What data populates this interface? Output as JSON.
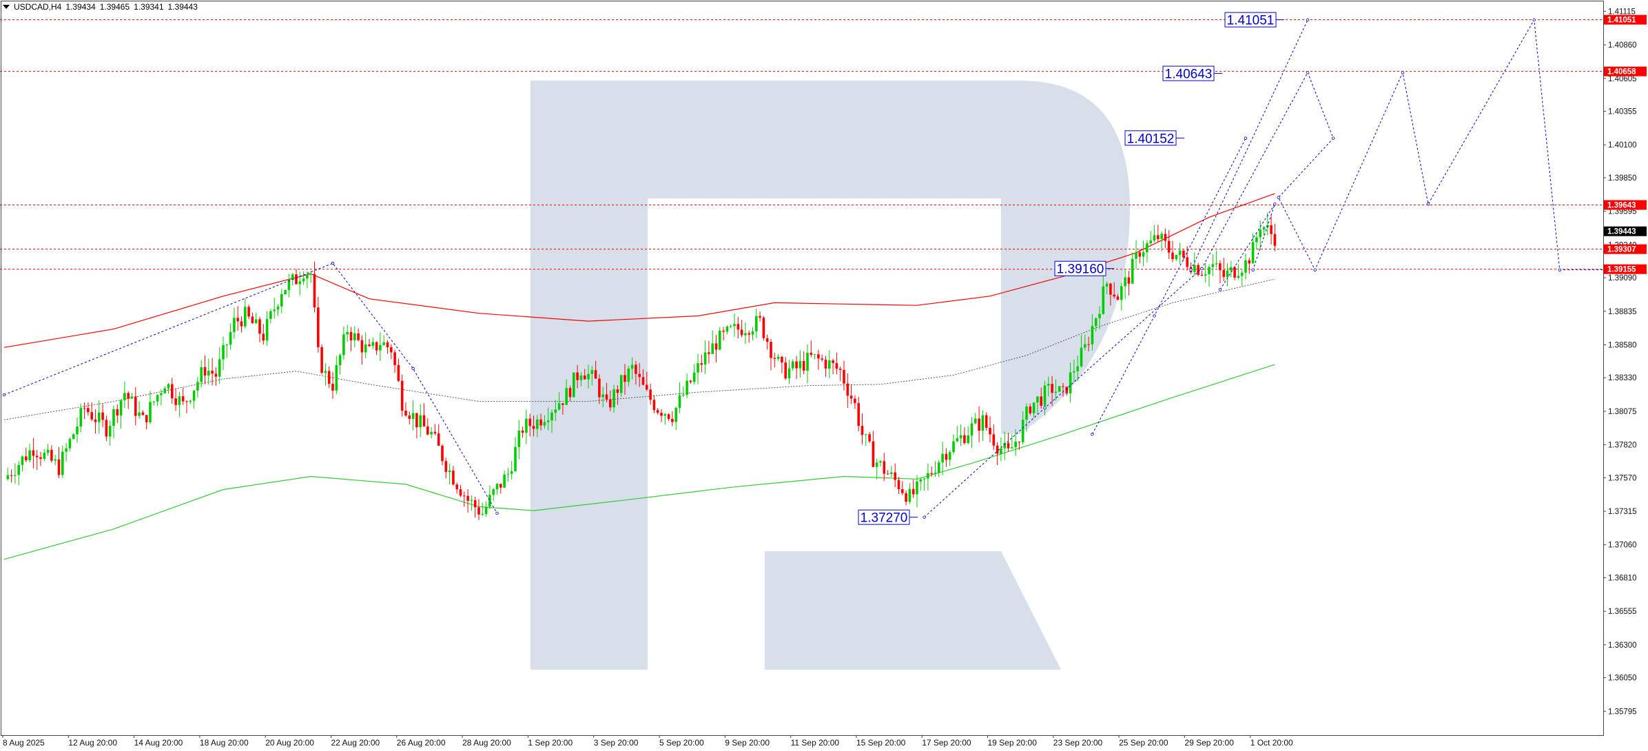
{
  "header": {
    "symbol": "USDCAD,H4",
    "open": "1.39434",
    "high": "1.39465",
    "low": "1.39341",
    "close": "1.39443"
  },
  "chart_data": {
    "type": "candlestick",
    "symbol": "USDCAD",
    "timeframe": "H4",
    "ylim": [
      1.3565,
      1.4118
    ],
    "y_ticks": [
      "1.41115",
      "1.40860",
      "1.40605",
      "1.40355",
      "1.40100",
      "1.39850",
      "1.39595",
      "1.39340",
      "1.39090",
      "1.38835",
      "1.38580",
      "1.38330",
      "1.38075",
      "1.37820",
      "1.37570",
      "1.37315",
      "1.37060",
      "1.36810",
      "1.36555",
      "1.36300",
      "1.36050",
      "1.35795"
    ],
    "x_labels": [
      "8 Aug 2025",
      "12 Aug 20:00",
      "14 Aug 20:00",
      "18 Aug 20:00",
      "20 Aug 20:00",
      "22 Aug 20:00",
      "26 Aug 20:00",
      "28 Aug 20:00",
      "1 Sep 20:00",
      "3 Sep 20:00",
      "5 Sep 20:00",
      "9 Sep 20:00",
      "11 Sep 20:00",
      "15 Sep 20:00",
      "17 Sep 20:00",
      "19 Sep 20:00",
      "23 Sep 20:00",
      "25 Sep 20:00",
      "29 Sep 20:00",
      "1 Oct 20:00"
    ],
    "horizontal_levels": [
      {
        "value": 1.41051,
        "label": "1.41051"
      },
      {
        "value": 1.40658,
        "label": "1.40658"
      },
      {
        "value": 1.39643,
        "label": "1.39643"
      },
      {
        "value": 1.39307,
        "label": "1.39307"
      },
      {
        "value": 1.39155,
        "label": "1.39155"
      }
    ],
    "current_price": "1.39443",
    "annotations": [
      {
        "label": "1.41051",
        "value": 1.41051
      },
      {
        "label": "1.40643",
        "value": 1.40643
      },
      {
        "label": "1.40152",
        "value": 1.40152
      },
      {
        "label": "1.39160",
        "value": 1.3916
      },
      {
        "label": "1.37270",
        "value": 1.3727
      }
    ],
    "candle_path": [
      [
        0,
        1.3756
      ],
      [
        8,
        1.378
      ],
      [
        15,
        1.3765
      ],
      [
        22,
        1.381
      ],
      [
        28,
        1.3795
      ],
      [
        33,
        1.3822
      ],
      [
        38,
        1.38
      ],
      [
        44,
        1.383
      ],
      [
        49,
        1.3812
      ],
      [
        55,
        1.384
      ],
      [
        58,
        1.3835
      ],
      [
        63,
        1.3875
      ],
      [
        66,
        1.388
      ],
      [
        71,
        1.3865
      ],
      [
        76,
        1.39
      ],
      [
        80,
        1.3908
      ],
      [
        82,
        1.3915
      ],
      [
        84,
        1.3912
      ],
      [
        86,
        1.385
      ],
      [
        88,
        1.3835
      ],
      [
        90,
        1.3828
      ],
      [
        94,
        1.387
      ],
      [
        97,
        1.386
      ],
      [
        100,
        1.3852
      ],
      [
        103,
        1.386
      ],
      [
        106,
        1.3855
      ],
      [
        109,
        1.3815
      ],
      [
        113,
        1.38
      ],
      [
        117,
        1.379
      ],
      [
        122,
        1.3762
      ],
      [
        127,
        1.374
      ],
      [
        131,
        1.373
      ],
      [
        134,
        1.3745
      ],
      [
        138,
        1.376
      ],
      [
        142,
        1.3795
      ],
      [
        146,
        1.38
      ],
      [
        150,
        1.381
      ],
      [
        154,
        1.382
      ],
      [
        158,
        1.384
      ],
      [
        162,
        1.383
      ],
      [
        165,
        1.381
      ],
      [
        168,
        1.3825
      ],
      [
        172,
        1.384
      ],
      [
        176,
        1.382
      ],
      [
        179,
        1.381
      ],
      [
        183,
        1.3805
      ],
      [
        187,
        1.3825
      ],
      [
        191,
        1.3845
      ],
      [
        195,
        1.386
      ],
      [
        199,
        1.3868
      ],
      [
        203,
        1.3872
      ],
      [
        207,
        1.3875
      ],
      [
        210,
        1.3855
      ],
      [
        213,
        1.3838
      ],
      [
        217,
        1.384
      ],
      [
        221,
        1.3848
      ],
      [
        225,
        1.3845
      ],
      [
        229,
        1.3838
      ],
      [
        233,
        1.3812
      ],
      [
        235,
        1.379
      ],
      [
        238,
        1.3772
      ],
      [
        242,
        1.376
      ],
      [
        245,
        1.3752
      ],
      [
        248,
        1.3742
      ],
      [
        251,
        1.375
      ],
      [
        254,
        1.3762
      ],
      [
        257,
        1.3775
      ],
      [
        261,
        1.3785
      ],
      [
        265,
        1.3795
      ],
      [
        268,
        1.38
      ],
      [
        272,
        1.3782
      ],
      [
        275,
        1.3775
      ],
      [
        278,
        1.379
      ],
      [
        281,
        1.3812
      ],
      [
        284,
        1.3818
      ],
      [
        287,
        1.3825
      ],
      [
        290,
        1.382
      ],
      [
        293,
        1.384
      ],
      [
        296,
        1.3855
      ],
      [
        299,
        1.388
      ],
      [
        302,
        1.3905
      ],
      [
        305,
        1.3895
      ],
      [
        308,
        1.391
      ],
      [
        311,
        1.393
      ],
      [
        314,
        1.3935
      ],
      [
        316,
        1.394
      ],
      [
        319,
        1.393
      ],
      [
        322,
        1.3925
      ],
      [
        325,
        1.392
      ],
      [
        328,
        1.3915
      ],
      [
        331,
        1.3918
      ],
      [
        334,
        1.391
      ],
      [
        337,
        1.3915
      ],
      [
        340,
        1.392
      ],
      [
        342,
        1.393
      ],
      [
        344,
        1.395
      ],
      [
        346,
        1.3945
      ],
      [
        348,
        1.394
      ]
    ],
    "moving_averages": {
      "red": [
        [
          0,
          1.3856
        ],
        [
          30,
          1.387
        ],
        [
          60,
          1.3895
        ],
        [
          84,
          1.3912
        ],
        [
          100,
          1.3893
        ],
        [
          130,
          1.3882
        ],
        [
          160,
          1.3876
        ],
        [
          190,
          1.388
        ],
        [
          211,
          1.389
        ],
        [
          230,
          1.3889
        ],
        [
          250,
          1.3888
        ],
        [
          270,
          1.3895
        ],
        [
          290,
          1.391
        ],
        [
          310,
          1.3928
        ],
        [
          330,
          1.3955
        ],
        [
          348,
          1.3973
        ]
      ],
      "black_dotted": [
        [
          0,
          1.3801
        ],
        [
          30,
          1.3815
        ],
        [
          60,
          1.3832
        ],
        [
          80,
          1.3838
        ],
        [
          100,
          1.3828
        ],
        [
          130,
          1.3815
        ],
        [
          160,
          1.3815
        ],
        [
          190,
          1.3822
        ],
        [
          220,
          1.3827
        ],
        [
          240,
          1.3828
        ],
        [
          260,
          1.3835
        ],
        [
          280,
          1.385
        ],
        [
          300,
          1.3872
        ],
        [
          320,
          1.389
        ],
        [
          348,
          1.3908
        ]
      ],
      "green": [
        [
          0,
          1.3695
        ],
        [
          30,
          1.3718
        ],
        [
          60,
          1.3748
        ],
        [
          84,
          1.3758
        ],
        [
          110,
          1.3752
        ],
        [
          130,
          1.3735
        ],
        [
          145,
          1.3732
        ],
        [
          170,
          1.374
        ],
        [
          200,
          1.375
        ],
        [
          230,
          1.3758
        ],
        [
          250,
          1.3756
        ],
        [
          265,
          1.3768
        ],
        [
          290,
          1.379
        ],
        [
          320,
          1.3818
        ],
        [
          348,
          1.3843
        ]
      ]
    },
    "forecast_paths": [
      [
        [
          0,
          1.382
        ],
        [
          90,
          1.392
        ],
        [
          112,
          1.384
        ],
        [
          135,
          1.373
        ]
      ],
      [
        [
          252,
          1.3727
        ],
        [
          285,
          1.381
        ],
        [
          328,
          1.3916
        ],
        [
          357,
          1.4065
        ],
        [
          364,
          1.4015
        ],
        [
          349,
          1.397
        ],
        [
          359,
          1.3915
        ],
        [
          383,
          1.4065
        ],
        [
          390,
          1.3965
        ],
        [
          419,
          1.4105
        ],
        [
          426,
          1.3915
        ],
        [
          440,
          1.3915
        ]
      ],
      [
        [
          298,
          1.379
        ],
        [
          315,
          1.388
        ],
        [
          340,
          1.4015
        ]
      ],
      [
        [
          325,
          1.3915
        ],
        [
          357,
          1.4105
        ]
      ],
      [
        [
          333,
          1.39
        ],
        [
          348,
          1.3965
        ],
        [
          342,
          1.3915
        ]
      ]
    ]
  },
  "colors": {
    "bull": "#00cc00",
    "bear": "#ff0000",
    "ma_red": "#ff0000",
    "ma_green": "#33cc33",
    "level_line": "#ff0000",
    "forecast": "#0000cc",
    "watermark": "#d6dfea",
    "price_tag": "#ff0000",
    "current_tag": "#000000"
  }
}
